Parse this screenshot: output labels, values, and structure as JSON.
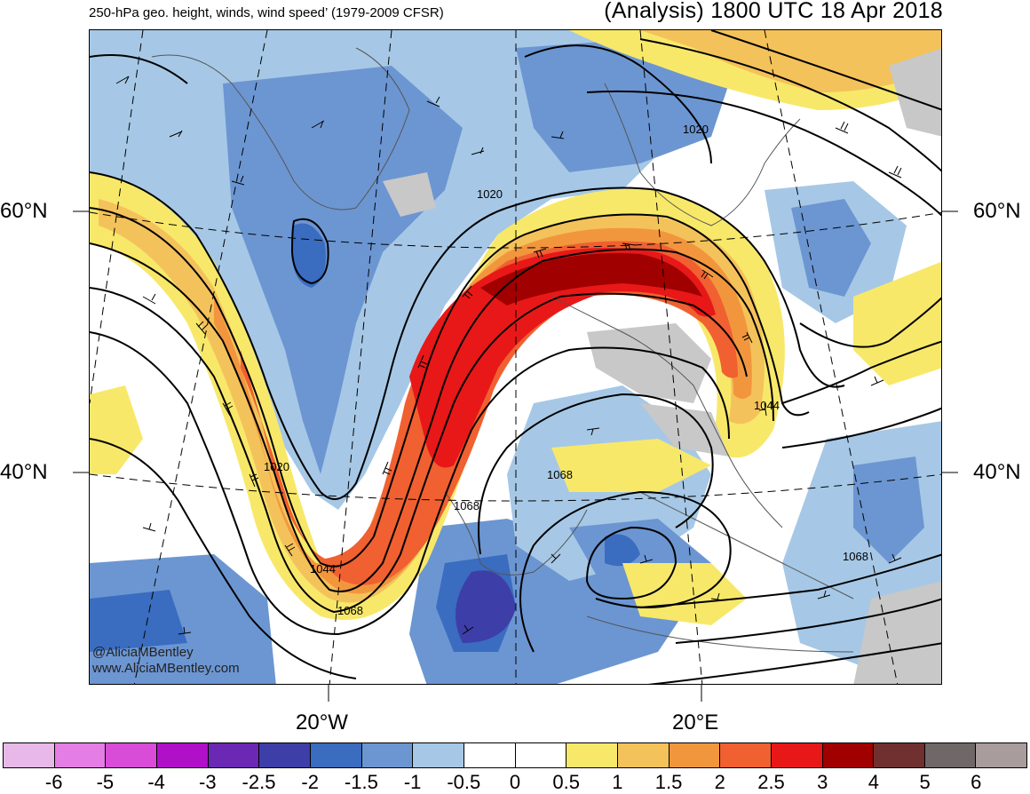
{
  "header": {
    "left_title": "250-hPa geo. height, winds, wind speed’ (1979-2009 CFSR)",
    "right_title": "(Analysis) 1800 UTC 18 Apr 2018"
  },
  "axes": {
    "lat_labels": [
      "60°N",
      "40°N"
    ],
    "lon_labels": [
      "20°W",
      "20°E"
    ]
  },
  "contour_labels": [
    "1020",
    "1020",
    "1020",
    "1044",
    "1044",
    "1068",
    "1068",
    "1068",
    "1068"
  ],
  "credit": {
    "handle": "@AliciaMBentley",
    "website": "www.AliciaMBentley.com"
  },
  "colorbar": {
    "colors": [
      "#e8b8e8",
      "#e47ee4",
      "#d84cd8",
      "#b010c8",
      "#6a28b4",
      "#3e3ea8",
      "#3a6cc0",
      "#6c96d2",
      "#a6c8e6",
      "#ffffff",
      "#ffffff",
      "#f8e86a",
      "#f4c25a",
      "#f2963e",
      "#f06030",
      "#e81818",
      "#a00000",
      "#703030",
      "#706868",
      "#a89c9c"
    ],
    "tick_labels": [
      "-6",
      "-5",
      "-4",
      "-3",
      "-2.5",
      "-2",
      "-1.5",
      "-1",
      "-0.5",
      "0",
      "0.5",
      "1",
      "1.5",
      "2",
      "2.5",
      "3",
      "4",
      "5",
      "6"
    ]
  }
}
